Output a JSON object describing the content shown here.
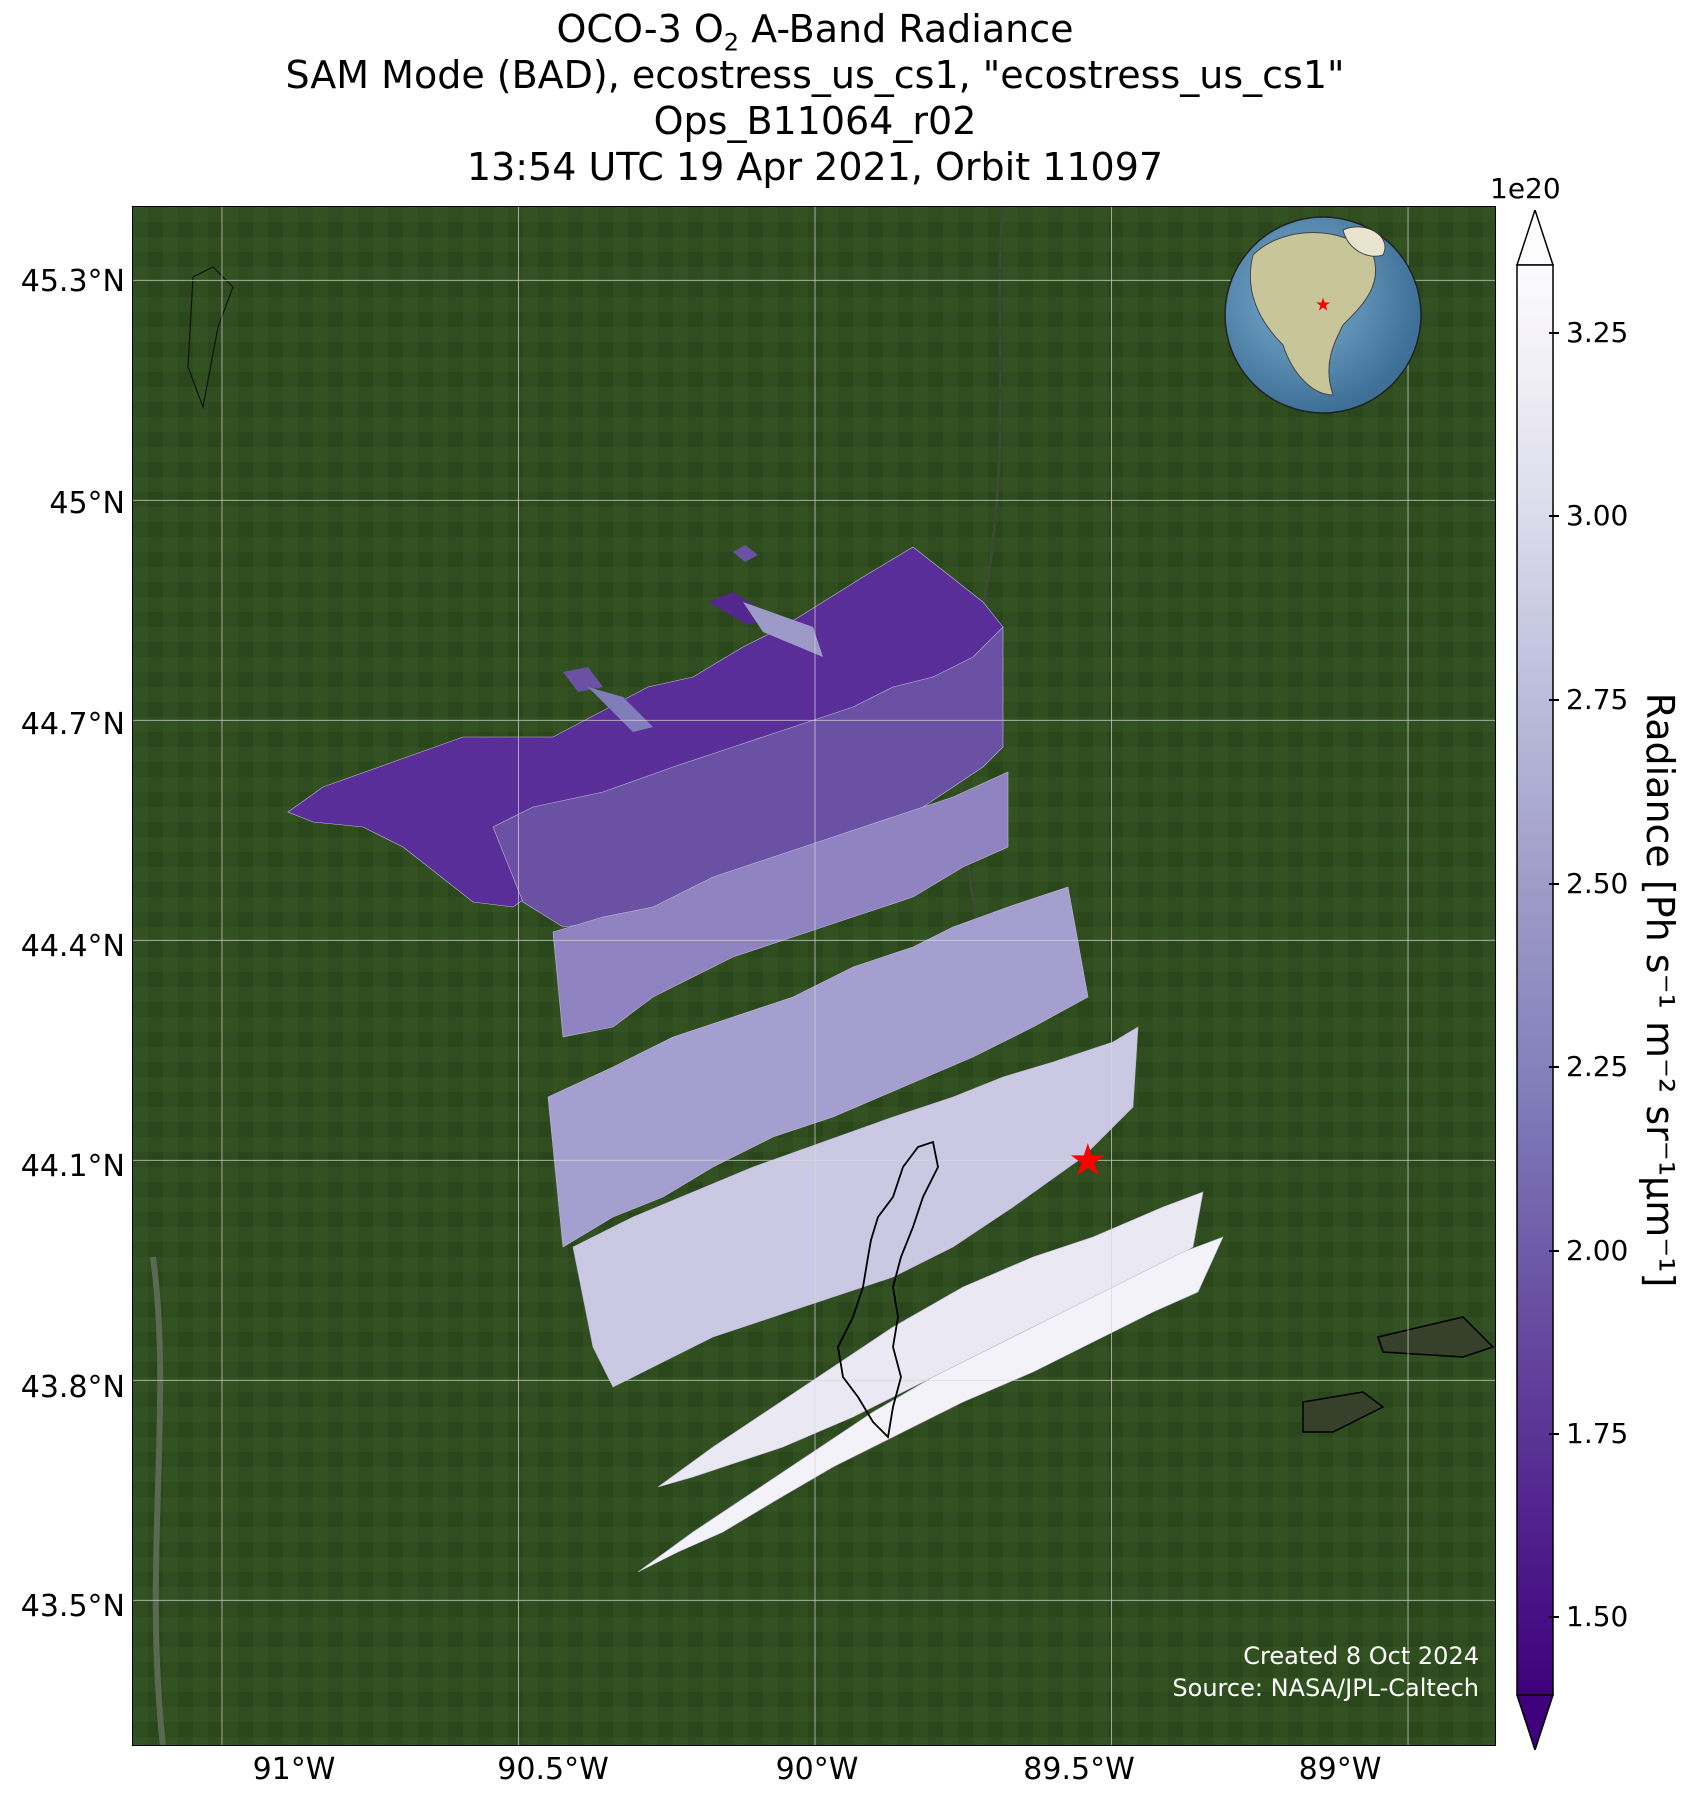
{
  "title": {
    "line1_pre": "OCO-3 O",
    "line1_sub": "2",
    "line1_post": " A-Band Radiance",
    "line2": "SAM Mode (BAD), ecostress_us_cs1, \"ecostress_us_cs1\"",
    "line3": "Ops_B11064_r02",
    "line4": "13:54 UTC 19 Apr 2021, Orbit 11097"
  },
  "map": {
    "lat_labels": [
      "45.3°N",
      "45°N",
      "44.7°N",
      "44.4°N",
      "44.1°N",
      "43.8°N",
      "43.5°N"
    ],
    "lon_labels": [
      "91°W",
      "90.5°W",
      "90°W",
      "89.5°W",
      "89°W"
    ],
    "lat_range": [
      43.3,
      45.4
    ],
    "lon_range": [
      -91.15,
      -88.85
    ],
    "target_marker": {
      "lon": -89.54,
      "lat": 44.1,
      "symbol": "★",
      "color": "#ff0000"
    },
    "background_colors": {
      "land": "#2c4a1c",
      "water": "#4a5a3a",
      "grid": "#d8d8d8"
    },
    "inset_globe": {
      "ocean": "#5b8fb5",
      "land": "#c9c59a",
      "marker_color": "#ff0000"
    }
  },
  "colorbar": {
    "multiplier": "1e20",
    "label": "Radiance [Ph s⁻¹ m⁻² sr⁻¹µm⁻¹]",
    "tick_labels": [
      "3.25",
      "3.00",
      "2.75",
      "2.50",
      "2.25",
      "2.00",
      "1.75",
      "1.50"
    ],
    "range": [
      1.38,
      3.33
    ],
    "colormap": "Purples",
    "colors": [
      "#3f007d",
      "#54278f",
      "#6a51a3",
      "#807dba",
      "#9e9ac8",
      "#bcbddc",
      "#dadaeb",
      "#efedf5",
      "#fcfbfd"
    ]
  },
  "credit": {
    "line1": "Created 8 Oct 2024",
    "line2": "Source: NASA/JPL-Caltech"
  }
}
